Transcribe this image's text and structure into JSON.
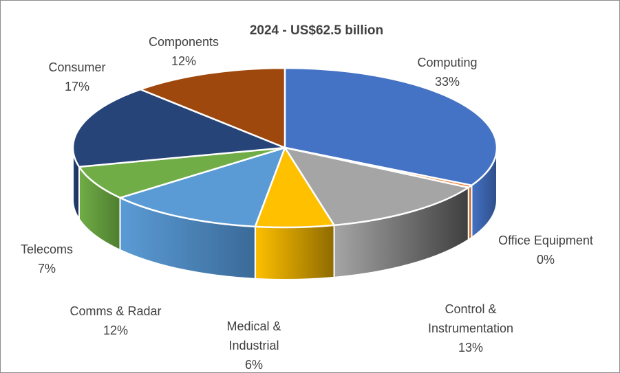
{
  "chart_data": {
    "type": "pie",
    "title": "2024 - US$62.5 billion",
    "slices": [
      {
        "label": [
          "Computing"
        ],
        "percent_label": "33%",
        "value": 33,
        "color": "#4472C4",
        "side": "#2F4F8A"
      },
      {
        "label": [
          "Office Equipment"
        ],
        "percent_label": "0%",
        "value": 0.5,
        "color": "#ED7D31",
        "side": "#A4561F"
      },
      {
        "label": [
          "Control &",
          "Instrumentation"
        ],
        "percent_label": "13%",
        "value": 13,
        "color": "#A5A5A5",
        "side": "#3F3F3F"
      },
      {
        "label": [
          "Medical &",
          "Industrial"
        ],
        "percent_label": "6%",
        "value": 6,
        "color": "#FFC000",
        "side": "#8E6B00"
      },
      {
        "label": [
          "Comms & Radar"
        ],
        "percent_label": "12%",
        "value": 12,
        "color": "#5B9BD5",
        "side": "#3A6A98"
      },
      {
        "label": [
          "Telecoms"
        ],
        "percent_label": "7%",
        "value": 7,
        "color": "#70AD47",
        "side": "#4E7E2F"
      },
      {
        "label": [
          "Consumer"
        ],
        "percent_label": "17%",
        "value": 17,
        "color": "#264478",
        "side": "#1A2F55"
      },
      {
        "label": [
          "Components"
        ],
        "percent_label": "12%",
        "value": 12,
        "color": "#9E480E",
        "side": "#6B3009"
      }
    ]
  }
}
